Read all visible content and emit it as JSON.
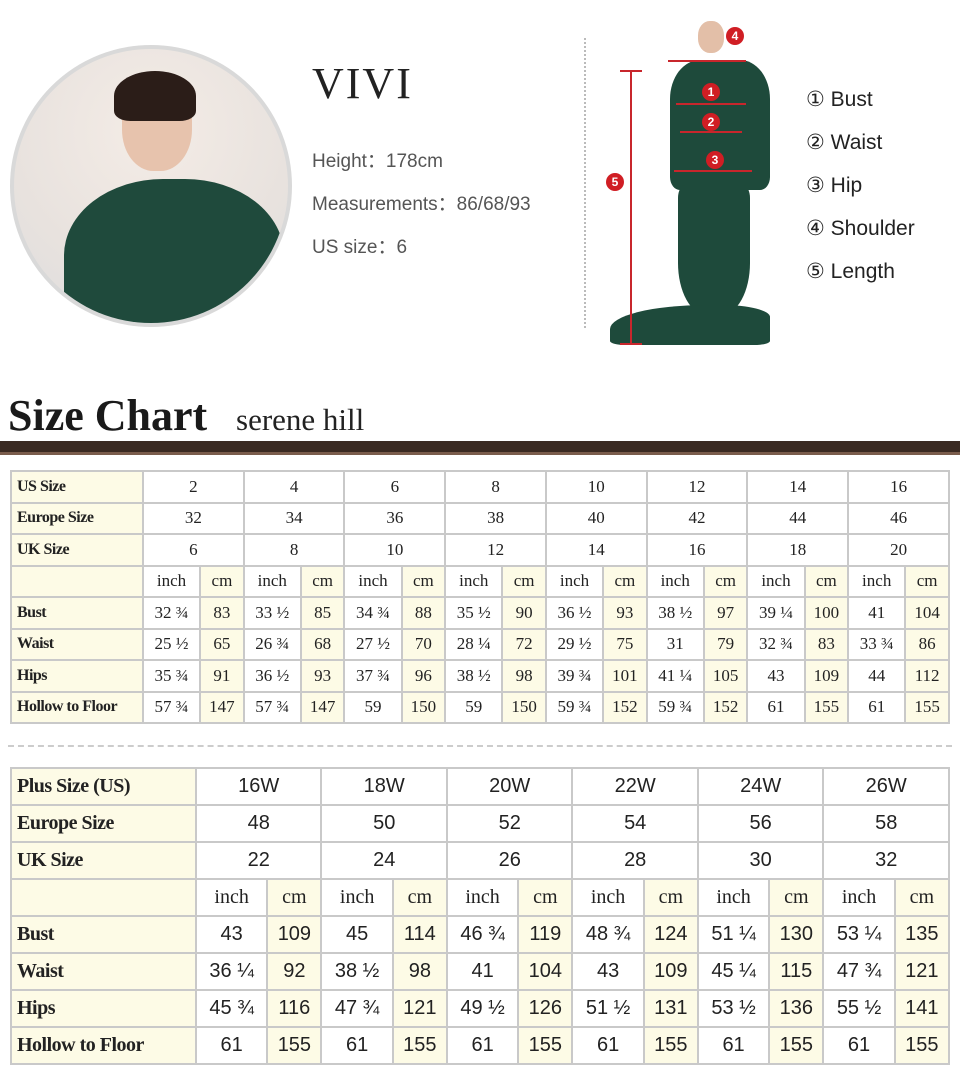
{
  "model": {
    "name": "VIVI",
    "height": "Height：178cm",
    "measurements": "Measurements：86/68/93",
    "us_size": "US size：6"
  },
  "diagram": {
    "badges": [
      "1",
      "2",
      "3",
      "4",
      "5"
    ],
    "legend": [
      "① Bust",
      "② Waist",
      "③ Hip",
      "④ Shoulder",
      "⑤ Length"
    ]
  },
  "header": {
    "title": "Size Chart",
    "subtitle": "serene hill"
  },
  "colors": {
    "accent": "#d01e24",
    "dress": "#1e4a3b",
    "bar": "#3a2a22",
    "cell_cream": "#fdfbe6"
  },
  "standard": {
    "size_rows": [
      {
        "label": "US Size",
        "values": [
          "2",
          "4",
          "6",
          "8",
          "10",
          "12",
          "14",
          "16"
        ]
      },
      {
        "label": "Europe Size",
        "values": [
          "32",
          "34",
          "36",
          "38",
          "40",
          "42",
          "44",
          "46"
        ]
      },
      {
        "label": "UK Size",
        "values": [
          "6",
          "8",
          "10",
          "12",
          "14",
          "16",
          "18",
          "20"
        ]
      }
    ],
    "units": [
      "inch",
      "cm"
    ],
    "measure_rows": [
      {
        "label": "Bust",
        "values": [
          "32 ¾",
          "83",
          "33 ½",
          "85",
          "34 ¾",
          "88",
          "35 ½",
          "90",
          "36 ½",
          "93",
          "38 ½",
          "97",
          "39 ¼",
          "100",
          "41",
          "104"
        ]
      },
      {
        "label": "Waist",
        "values": [
          "25 ½",
          "65",
          "26 ¾",
          "68",
          "27 ½",
          "70",
          "28 ¼",
          "72",
          "29 ½",
          "75",
          "31",
          "79",
          "32 ¾",
          "83",
          "33 ¾",
          "86"
        ]
      },
      {
        "label": "Hips",
        "values": [
          "35 ¾",
          "91",
          "36 ½",
          "93",
          "37 ¾",
          "96",
          "38 ½",
          "98",
          "39 ¾",
          "101",
          "41 ¼",
          "105",
          "43",
          "109",
          "44",
          "112"
        ]
      },
      {
        "label": "Hollow to Floor",
        "values": [
          "57 ¾",
          "147",
          "57 ¾",
          "147",
          "59",
          "150",
          "59",
          "150",
          "59 ¾",
          "152",
          "59 ¾",
          "152",
          "61",
          "155",
          "61",
          "155"
        ]
      }
    ]
  },
  "plus": {
    "size_rows": [
      {
        "label": "Plus Size (US)",
        "values": [
          "16W",
          "18W",
          "20W",
          "22W",
          "24W",
          "26W"
        ]
      },
      {
        "label": "Europe Size",
        "values": [
          "48",
          "50",
          "52",
          "54",
          "56",
          "58"
        ]
      },
      {
        "label": "UK Size",
        "values": [
          "22",
          "24",
          "26",
          "28",
          "30",
          "32"
        ]
      }
    ],
    "units": [
      "inch",
      "cm"
    ],
    "measure_rows": [
      {
        "label": "Bust",
        "values": [
          "43",
          "109",
          "45",
          "114",
          "46 ¾",
          "119",
          "48 ¾",
          "124",
          "51 ¼",
          "130",
          "53 ¼",
          "135"
        ]
      },
      {
        "label": "Waist",
        "values": [
          "36 ¼",
          "92",
          "38 ½",
          "98",
          "41",
          "104",
          "43",
          "109",
          "45 ¼",
          "115",
          "47 ¾",
          "121"
        ]
      },
      {
        "label": "Hips",
        "values": [
          "45 ¾",
          "116",
          "47 ¾",
          "121",
          "49 ½",
          "126",
          "51 ½",
          "131",
          "53 ½",
          "136",
          "55 ½",
          "141"
        ]
      },
      {
        "label": "Hollow to Floor",
        "values": [
          "61",
          "155",
          "61",
          "155",
          "61",
          "155",
          "61",
          "155",
          "61",
          "155",
          "61",
          "155"
        ]
      }
    ]
  }
}
